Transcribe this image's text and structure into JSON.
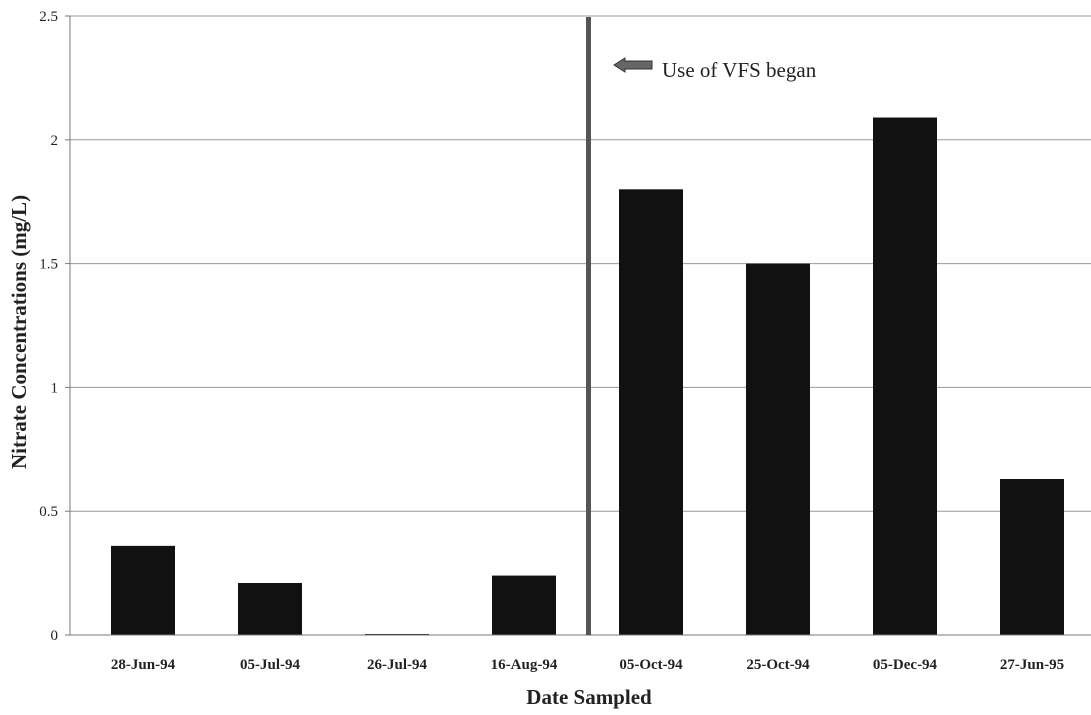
{
  "chart_data": {
    "type": "bar",
    "categories": [
      "28-Jun-94",
      "05-Jul-94",
      "26-Jul-94",
      "16-Aug-94",
      "05-Oct-94",
      "25-Oct-94",
      "05-Dec-94",
      "27-Jun-95"
    ],
    "values": [
      0.36,
      0.21,
      0.0,
      0.24,
      1.8,
      1.5,
      2.09,
      0.63
    ],
    "xlabel": "Date Sampled",
    "ylabel": "Nitrate Concentrations (mg/L)",
    "ylim": [
      0,
      2.5
    ],
    "yticks": [
      "0",
      "0.5",
      "1",
      "1.5",
      "2",
      "2.5"
    ],
    "grid": true,
    "bar_color": "#111111",
    "annotation": {
      "text": "Use of VFS began",
      "marker_between": [
        "16-Aug-94",
        "05-Oct-94"
      ],
      "line_color": "#555555"
    }
  }
}
